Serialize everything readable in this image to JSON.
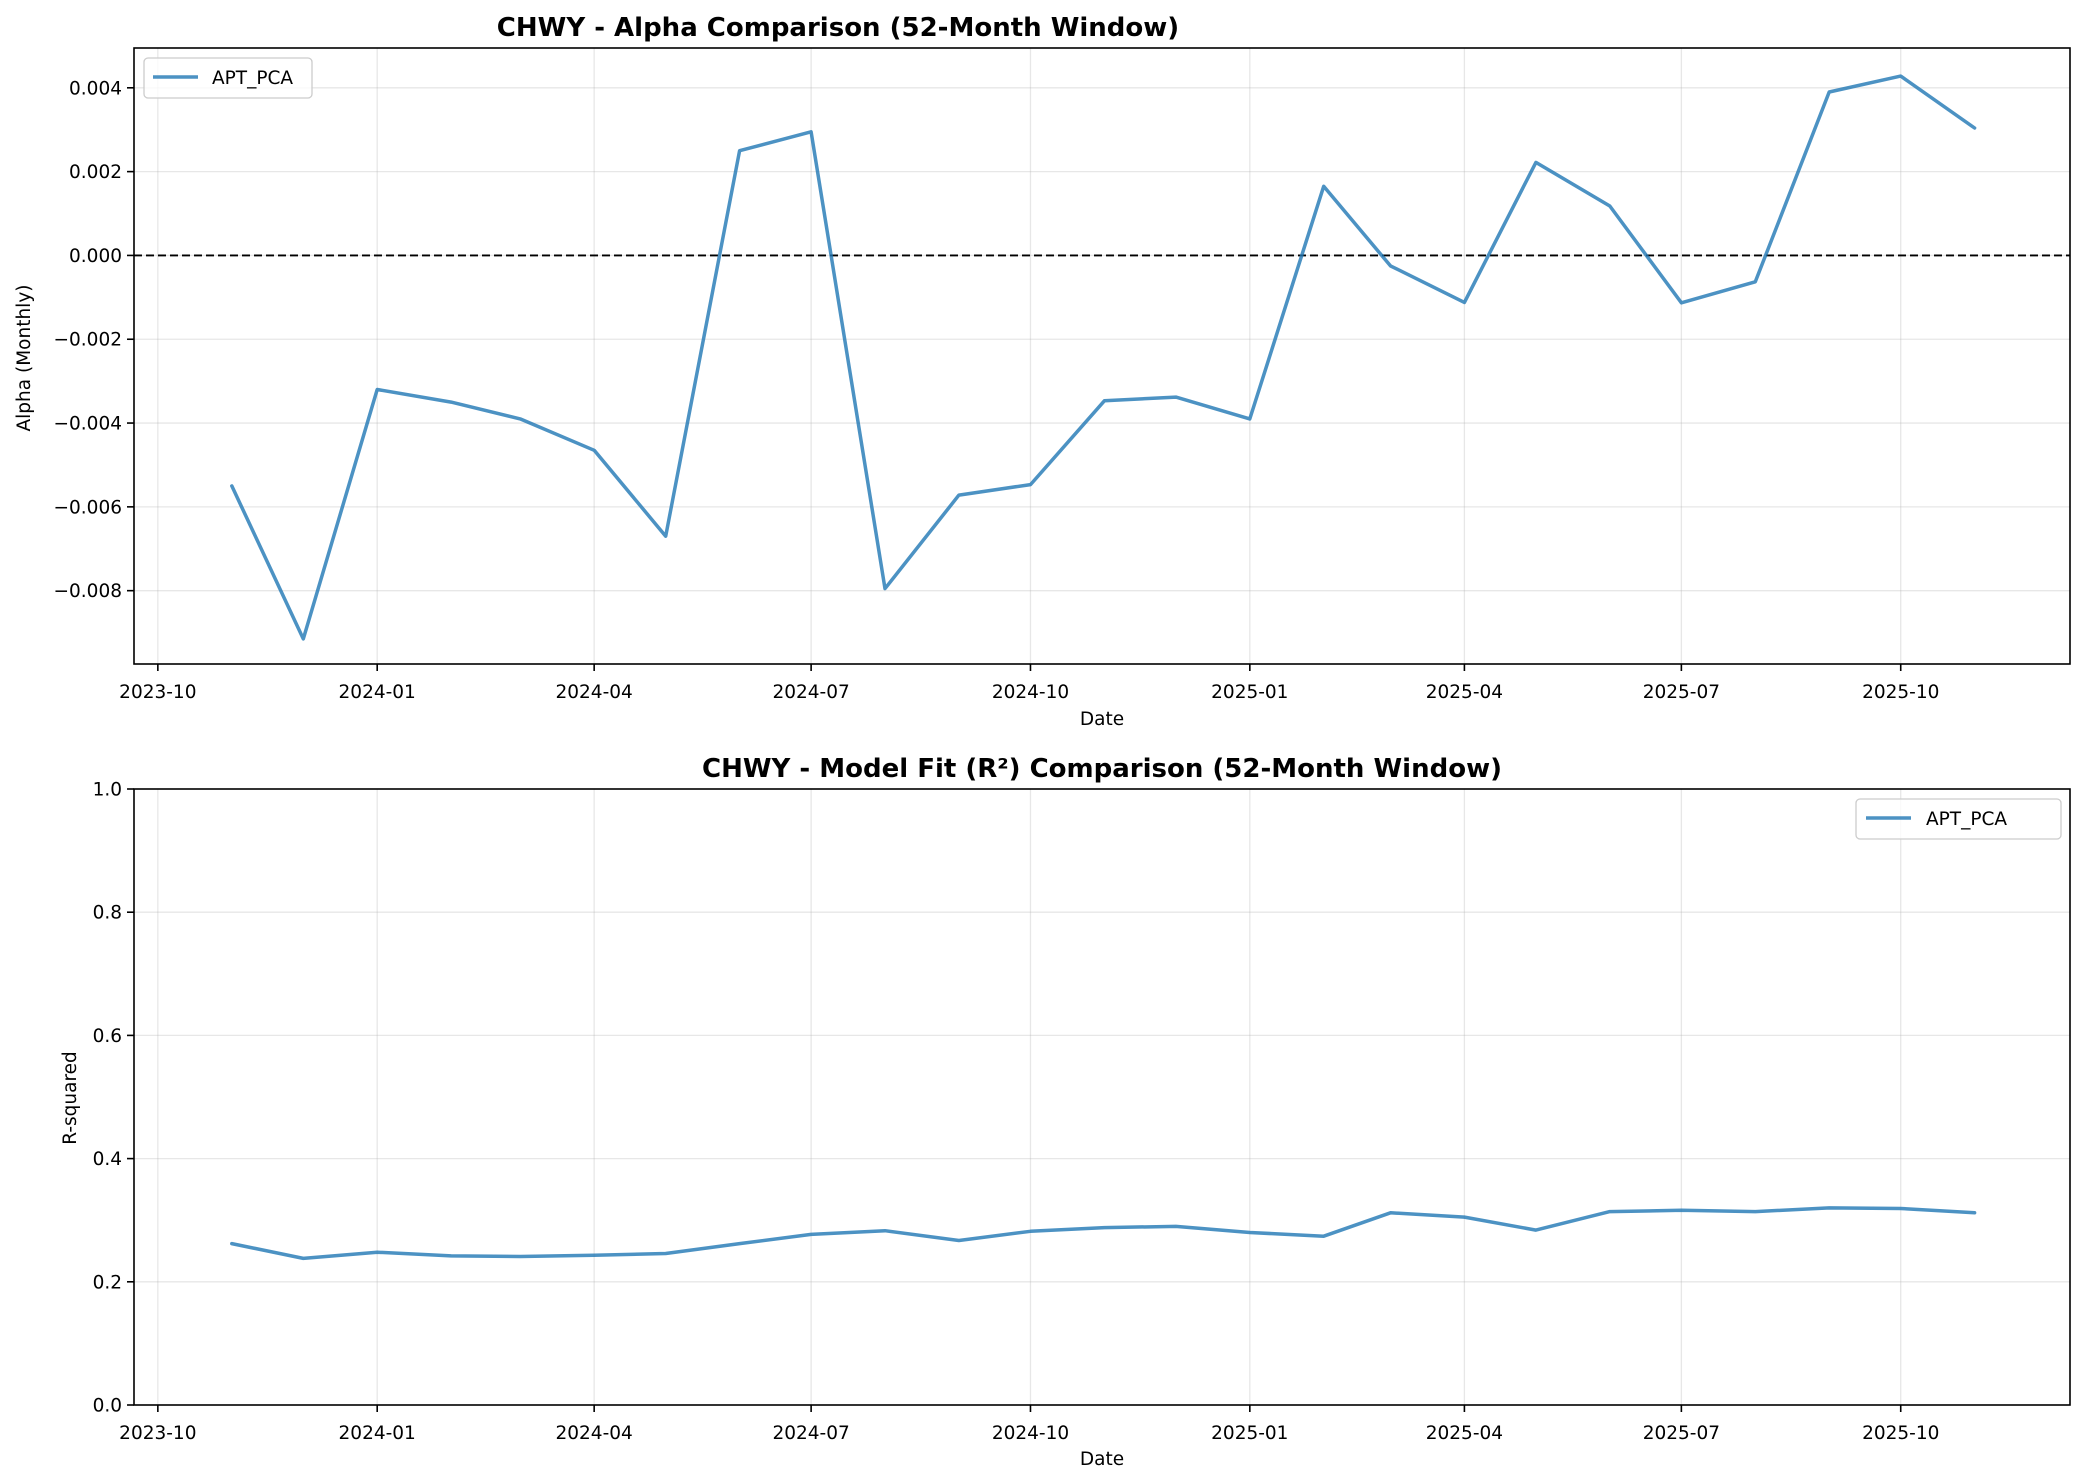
{
  "chart_data": [
    {
      "type": "line",
      "title": "CHWY - Alpha Comparison (52-Month Window)",
      "xlabel": "Date",
      "ylabel": "Alpha (Monthly)",
      "xlim": [
        "2023-09-21",
        "2025-12-11"
      ],
      "ylim": [
        -0.00975,
        0.00495
      ],
      "xticks": [
        "2023-10",
        "2024-01",
        "2024-04",
        "2024-07",
        "2024-10",
        "2025-01",
        "2025-04",
        "2025-07",
        "2025-10"
      ],
      "yticks": [
        -0.008,
        -0.006,
        -0.004,
        -0.002,
        0.0,
        0.002,
        0.004
      ],
      "ytick_labels": [
        "−0.008",
        "−0.006",
        "−0.004",
        "−0.002",
        "0.000",
        "0.002",
        "0.004"
      ],
      "grid": true,
      "reference_line": {
        "y": 0,
        "style": "dashed",
        "color": "#000000"
      },
      "legend_position": "upper left",
      "x": [
        "2023-11-01",
        "2023-12-01",
        "2024-01-01",
        "2024-02-01",
        "2024-03-01",
        "2024-04-01",
        "2024-05-01",
        "2024-06-01",
        "2024-07-01",
        "2024-08-01",
        "2024-09-01",
        "2024-10-01",
        "2024-11-01",
        "2024-12-01",
        "2025-01-01",
        "2025-02-01",
        "2025-03-01",
        "2025-04-01",
        "2025-05-01",
        "2025-06-01",
        "2025-07-01",
        "2025-08-01",
        "2025-09-01",
        "2025-10-01",
        "2025-11-01"
      ],
      "series": [
        {
          "name": "APT_PCA",
          "color": "#1f77b4",
          "values": [
            -0.0055,
            -0.00915,
            -0.0032,
            -0.0035,
            -0.0039,
            -0.00465,
            -0.0067,
            0.0025,
            0.00295,
            -0.00795,
            -0.00572,
            -0.00547,
            -0.00347,
            -0.00338,
            -0.0039,
            0.00165,
            -0.00025,
            -0.00112,
            0.00222,
            0.00118,
            -0.00113,
            -0.00063,
            0.0039,
            0.00428,
            0.00304
          ]
        }
      ]
    },
    {
      "type": "line",
      "title": "CHWY - Model Fit (R²) Comparison (52-Month Window)",
      "xlabel": "Date",
      "ylabel": "R-squared",
      "xlim": [
        "2023-09-21",
        "2025-12-11"
      ],
      "ylim": [
        0.0,
        1.0
      ],
      "xticks": [
        "2023-10",
        "2024-01",
        "2024-04",
        "2024-07",
        "2024-10",
        "2025-01",
        "2025-04",
        "2025-07",
        "2025-10"
      ],
      "yticks": [
        0.0,
        0.2,
        0.4,
        0.6,
        0.8,
        1.0
      ],
      "ytick_labels": [
        "0.0",
        "0.2",
        "0.4",
        "0.6",
        "0.8",
        "1.0"
      ],
      "grid": true,
      "legend_position": "upper right",
      "x": [
        "2023-11-01",
        "2023-12-01",
        "2024-01-01",
        "2024-02-01",
        "2024-03-01",
        "2024-04-01",
        "2024-05-01",
        "2024-06-01",
        "2024-07-01",
        "2024-08-01",
        "2024-09-01",
        "2024-10-01",
        "2024-11-01",
        "2024-12-01",
        "2025-01-01",
        "2025-02-01",
        "2025-03-01",
        "2025-04-01",
        "2025-05-01",
        "2025-06-01",
        "2025-07-01",
        "2025-08-01",
        "2025-09-01",
        "2025-10-01",
        "2025-11-01"
      ],
      "series": [
        {
          "name": "APT_PCA",
          "color": "#1f77b4",
          "values": [
            0.262,
            0.238,
            0.248,
            0.242,
            0.241,
            0.243,
            0.246,
            0.262,
            0.277,
            0.283,
            0.267,
            0.282,
            0.288,
            0.29,
            0.28,
            0.274,
            0.312,
            0.305,
            0.284,
            0.314,
            0.316,
            0.314,
            0.32,
            0.319,
            0.312
          ]
        }
      ]
    }
  ]
}
